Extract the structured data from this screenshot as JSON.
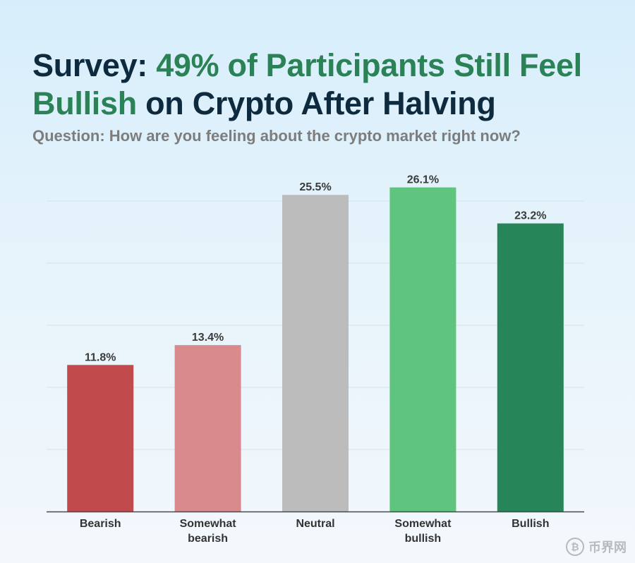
{
  "title": {
    "part1": "Survey: ",
    "part2": "49% of Participants Still Feel Bullish",
    "part3": " on Crypto After Halving"
  },
  "subtitle": "Question: How are you feeling about the crypto market right now?",
  "colors": {
    "title_dark": "#0d2a3f",
    "title_accent": "#2a8256"
  },
  "watermark": {
    "text": "币界网",
    "icon": "bitcoin-icon"
  },
  "chart_data": {
    "type": "bar",
    "title": "Survey: 49% of Participants Still Feel Bullish on Crypto After Halving",
    "subtitle": "Question: How are you feeling about the crypto market right now?",
    "xlabel": "",
    "ylabel": "",
    "ylim": [
      0,
      25
    ],
    "grid": true,
    "legend": "none",
    "categories": [
      {
        "line1": "Bearish",
        "line2": ""
      },
      {
        "line1": "Somewhat",
        "line2": "bearish"
      },
      {
        "line1": "Neutral",
        "line2": ""
      },
      {
        "line1": "Somewhat",
        "line2": "bullish"
      },
      {
        "line1": "Bullish",
        "line2": ""
      }
    ],
    "values": [
      11.8,
      13.4,
      25.5,
      26.1,
      23.2
    ],
    "value_labels": [
      "11.8%",
      "13.4%",
      "25.5%",
      "26.1%",
      "23.2%"
    ],
    "bar_colors": [
      "#c04a4c",
      "#d88a8c",
      "#bcbcbc",
      "#5ec47e",
      "#27855a"
    ]
  }
}
